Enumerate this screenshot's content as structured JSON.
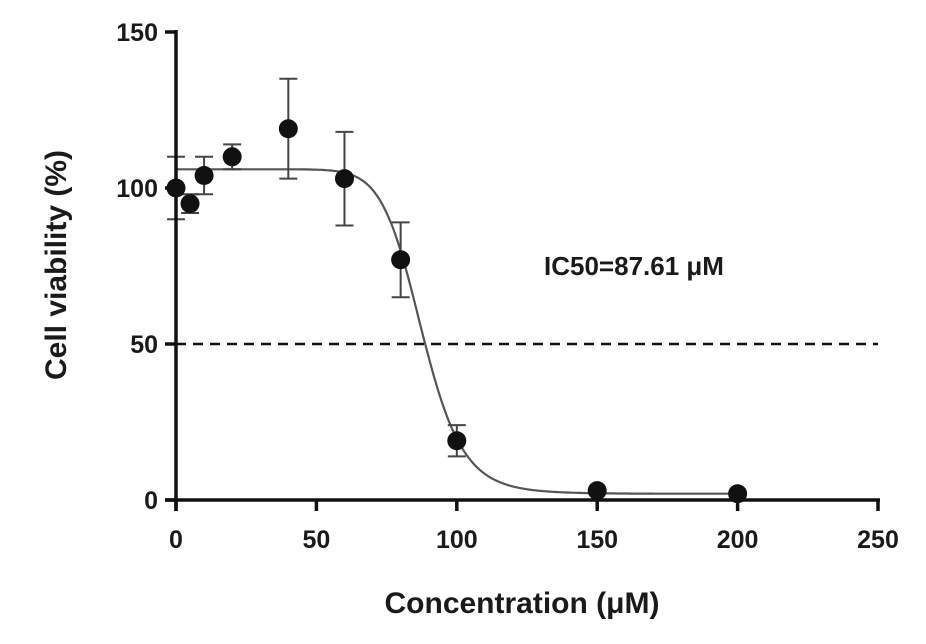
{
  "chart_data": {
    "type": "scatter",
    "title": "",
    "xlabel": "Concentration (μM)",
    "ylabel": "Cell viability (%)",
    "xlim": [
      0,
      250
    ],
    "ylim": [
      0,
      150
    ],
    "xticks": [
      0,
      50,
      100,
      150,
      200,
      250
    ],
    "yticks": [
      0,
      50,
      100,
      150
    ],
    "xtick_labels": [
      "0",
      "50",
      "100",
      "150",
      "200",
      "250"
    ],
    "ytick_labels": [
      "0",
      "50",
      "100",
      "150"
    ],
    "grid": false,
    "legend": "none",
    "series": [
      {
        "points": [
          {
            "x": 0,
            "y": 100,
            "err": 10
          },
          {
            "x": 5,
            "y": 95,
            "err": 3
          },
          {
            "x": 10,
            "y": 104,
            "err": 6
          },
          {
            "x": 20,
            "y": 110,
            "err": 4
          },
          {
            "x": 40,
            "y": 119,
            "err": 16
          },
          {
            "x": 60,
            "y": 103,
            "err": 15
          },
          {
            "x": 80,
            "y": 77,
            "err": 12
          },
          {
            "x": 100,
            "y": 19,
            "err": 5
          },
          {
            "x": 150,
            "y": 3,
            "err": 1
          },
          {
            "x": 200,
            "y": 2,
            "err": 1
          }
        ]
      }
    ],
    "fit_curve": {
      "model": "sigmoidal dose-response",
      "top": 106,
      "bottom": 2,
      "ic50": 87.61,
      "hill_slope": 12
    },
    "reference_line": {
      "y": 50,
      "style": "dashed"
    },
    "annotations": [
      {
        "text": "IC50=87.61 μM"
      }
    ],
    "colors": {
      "points": "#111111",
      "curve": "#555555",
      "axes": "#111111",
      "text": "#1a1a1a"
    }
  }
}
